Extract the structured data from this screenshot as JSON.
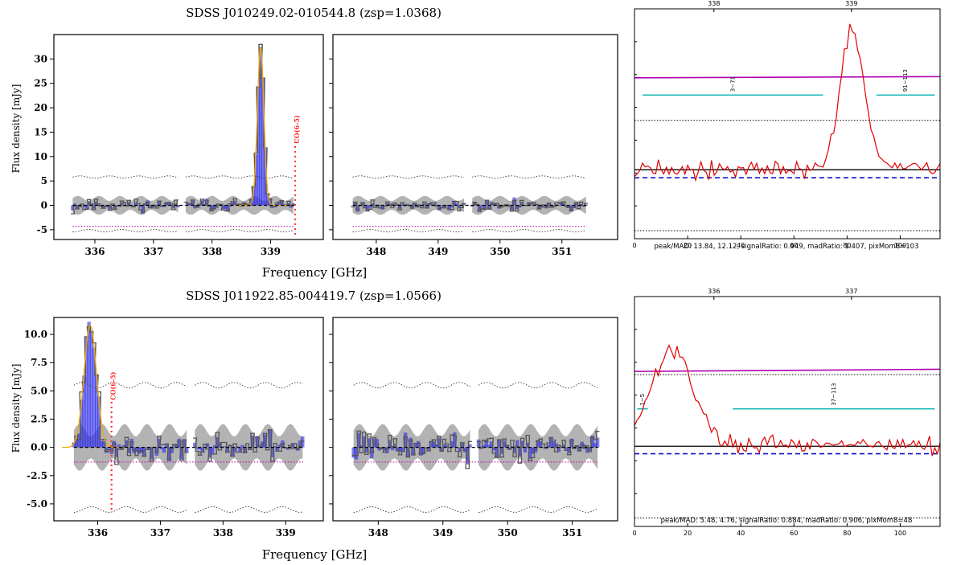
{
  "chart_data": [
    {
      "type": "line",
      "title": "SDSS J010249.02-010544.8 (zsp=1.0368)",
      "ylabel": "Flux density [mJy]",
      "xlabel": "Frequency [GHz]",
      "ylim": [
        -7,
        35
      ],
      "y_ticks": [
        -5,
        0,
        5,
        10,
        15,
        20,
        25,
        30
      ],
      "line_label": "CO(6-5)",
      "line_freq": 339.42,
      "panels": [
        {
          "xlim": [
            335.3,
            339.9
          ],
          "x_ticks": [
            336,
            337,
            338,
            339
          ],
          "windows": [
            [
              335.62,
              337.45
            ],
            [
              337.55,
              339.4
            ]
          ],
          "peak": {
            "center": 338.83,
            "sigma": 0.055,
            "amp": 32.5
          },
          "noise": 1.5,
          "seed": 11
        },
        {
          "xlim": [
            347.3,
            351.9
          ],
          "x_ticks": [
            348,
            349,
            350,
            351
          ],
          "windows": [
            [
              347.62,
              349.45
            ],
            [
              349.55,
              351.4
            ]
          ],
          "noise": 1.5,
          "seed": 27
        }
      ],
      "magenta_level": -4.3,
      "envelope": [
        -5.2,
        5.8
      ]
    },
    {
      "type": "line",
      "title": "SDSS J011922.85-004419.7 (zsp=1.0566)",
      "ylabel": "Flux density [mJy]",
      "xlabel": "Frequency [GHz]",
      "ylim": [
        -6.5,
        11.5
      ],
      "y_ticks": [
        -5.0,
        -2.5,
        0.0,
        2.5,
        5.0,
        7.5,
        10.0
      ],
      "line_label": "CO(6-5)",
      "line_freq": 336.22,
      "panels": [
        {
          "xlim": [
            335.3,
            339.6
          ],
          "x_ticks": [
            336,
            337,
            338,
            339
          ],
          "windows": [
            [
              335.62,
              337.45
            ],
            [
              337.55,
              339.3
            ]
          ],
          "peak": {
            "center": 335.88,
            "sigma": 0.1,
            "amp": 10.8
          },
          "noise": 1.6,
          "seed": 5
        },
        {
          "xlim": [
            347.3,
            351.7
          ],
          "x_ticks": [
            348,
            349,
            350,
            351
          ],
          "windows": [
            [
              347.62,
              349.45
            ],
            [
              349.55,
              351.4
            ]
          ],
          "noise": 1.6,
          "seed": 42
        }
      ],
      "magenta_level": -1.3,
      "envelope": [
        -5.5,
        5.5
      ]
    },
    {
      "type": "line",
      "ylim": [
        -6,
        14
      ],
      "xlim": [
        0,
        115
      ],
      "x_ticks": [
        0,
        20,
        40,
        60,
        80,
        100
      ],
      "top_ticks": [
        338,
        339
      ],
      "segment_labels": [
        "3~71",
        "91~113"
      ],
      "segments": [
        [
          3,
          71
        ],
        [
          91,
          113
        ]
      ],
      "stats": "peak/MAD: 13.84, 12.12, signalRatio: 0.949, madRatio: 1.407, pixMom8=103",
      "magenta": [
        8.0,
        8.1
      ],
      "cyan_level": 6.5,
      "dotted_levels": [
        4.3,
        -5.3
      ],
      "black_level": 0.0,
      "blue_level": -0.7,
      "peak": {
        "center": 82,
        "sigma": 4.5,
        "amp": 12.0
      }
    },
    {
      "type": "line",
      "ylim": [
        -7.5,
        14
      ],
      "xlim": [
        0,
        115
      ],
      "x_ticks": [
        0,
        20,
        40,
        60,
        80,
        100
      ],
      "top_ticks": [
        336,
        337
      ],
      "segment_labels": [
        "1~5",
        "37~113"
      ],
      "segments": [
        [
          1,
          5
        ],
        [
          37,
          113
        ]
      ],
      "stats": "peak/MAD: 5.48, 4.76, signalRatio: 0.884, madRatio: 0.906, pixMom8=48",
      "magenta": [
        7.0,
        7.2
      ],
      "cyan_level": 3.5,
      "dotted_levels": [
        6.7,
        -6.7
      ],
      "black_level": 0.0,
      "blue_level": -0.7,
      "peak": {
        "center": 14,
        "sigma": 8,
        "amp": 9.0
      }
    }
  ]
}
